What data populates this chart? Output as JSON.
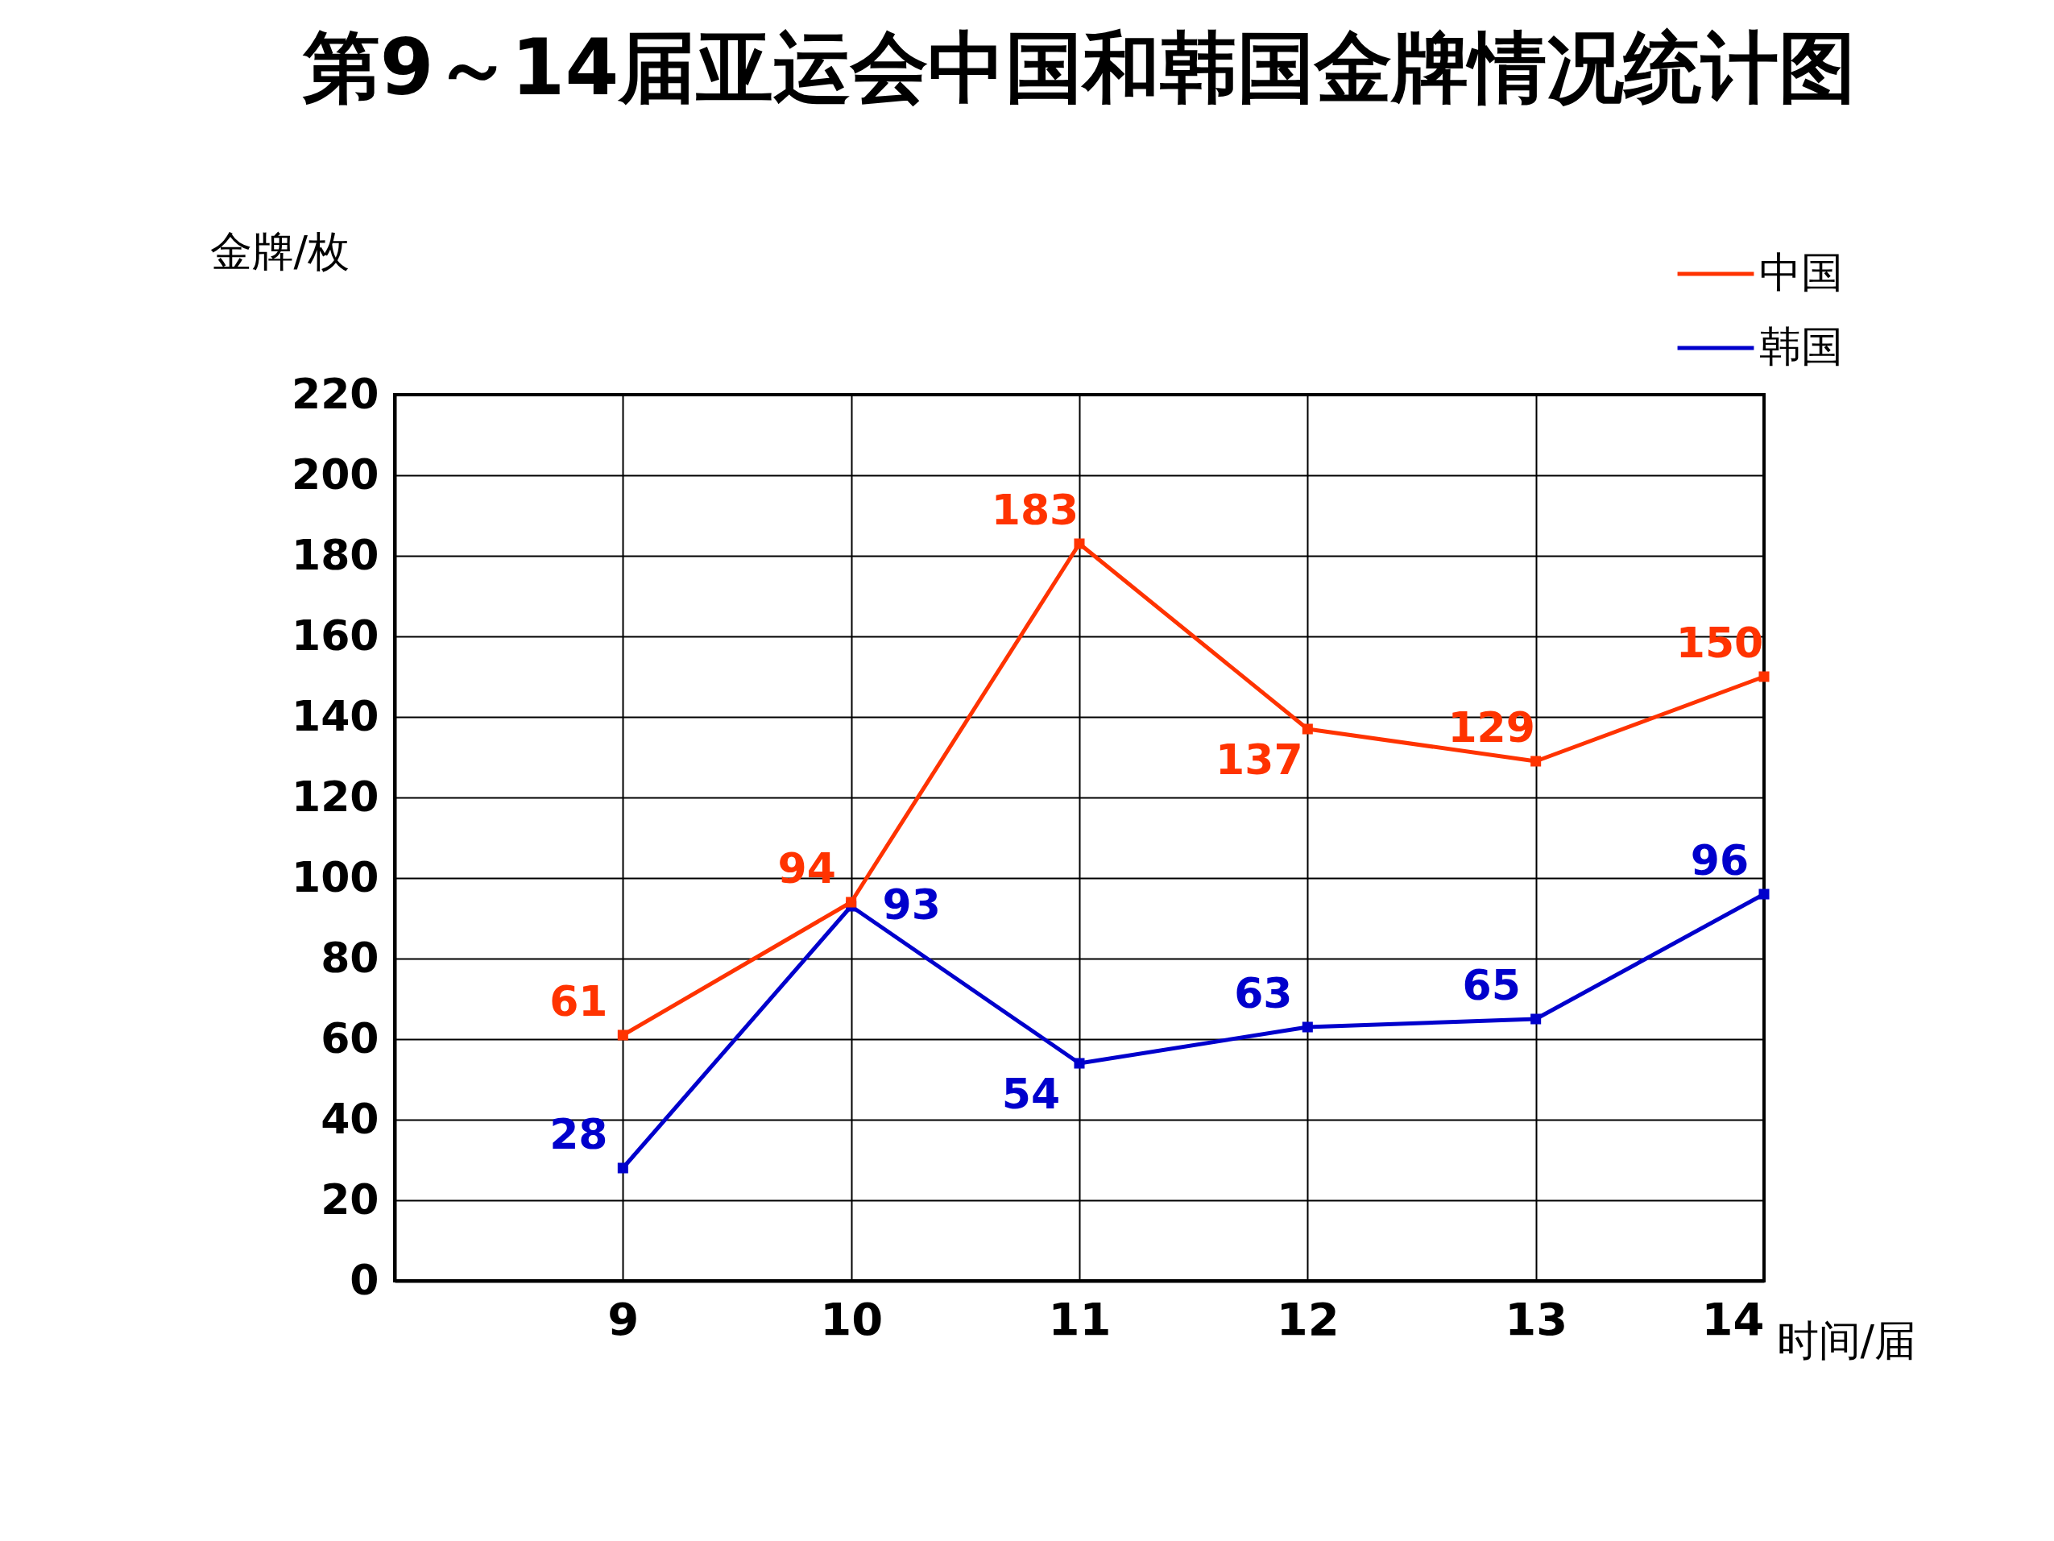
{
  "chart_data": {
    "type": "line",
    "title": "第9～14届亚运会中国和韩国金牌情况统计图",
    "xlabel": "时间/届",
    "ylabel": "金牌/枚",
    "x": [
      9,
      10,
      11,
      12,
      13,
      14
    ],
    "series": [
      {
        "name": "中国",
        "color": "#ff3300",
        "values": [
          61,
          94,
          183,
          137,
          129,
          150
        ]
      },
      {
        "name": "韩国",
        "color": "#0000cc",
        "values": [
          28,
          93,
          54,
          63,
          65,
          96
        ]
      }
    ],
    "xlim": [
      8,
      14
    ],
    "xticks": [
      9,
      10,
      11,
      12,
      13,
      14
    ],
    "ylim": [
      0,
      220
    ],
    "yticks": [
      0,
      20,
      40,
      60,
      80,
      100,
      120,
      140,
      160,
      180,
      200,
      220
    ],
    "grid": true,
    "legend": "top right",
    "marker": "square",
    "line_style": "solid",
    "data_labels": true
  }
}
